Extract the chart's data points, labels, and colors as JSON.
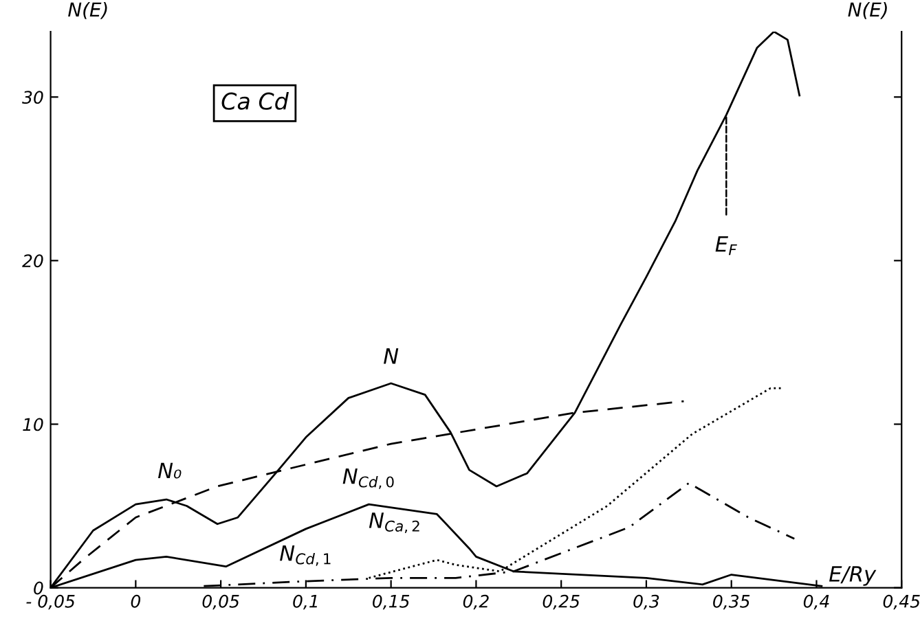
{
  "chart_data": {
    "type": "line",
    "xlabel": "E/Ry",
    "ylabel": "N(E)",
    "y2label": "N(E)",
    "xlim": [
      -0.05,
      0.45
    ],
    "ylim": [
      0,
      34
    ],
    "xticks": [
      {
        "value": -0.05,
        "label": "- 0,05"
      },
      0,
      {
        "value": 0.05,
        "label": "0,05"
      },
      {
        "value": 0.1,
        "label": "0,1"
      },
      {
        "value": 0.15,
        "label": "0,15"
      },
      {
        "value": 0.2,
        "label": "0,2"
      },
      {
        "value": 0.25,
        "label": "0,25"
      },
      {
        "value": 0.3,
        "label": "0,3"
      },
      {
        "value": 0.35,
        "label": "0,35"
      },
      {
        "value": 0.4,
        "label": "0,4"
      },
      {
        "value": 0.45,
        "label": "0,45"
      }
    ],
    "yticks": [
      0,
      10,
      20,
      30
    ],
    "grid": false,
    "marker": "none",
    "series": [
      {
        "color": "#000000",
        "line_style": "solid",
        "x": [
          -0.05,
          -0.025,
          0,
          0.018,
          0.03,
          0.048,
          0.06,
          0.083,
          0.1,
          0.125,
          0.15,
          0.17,
          0.185,
          0.196,
          0.212,
          0.23,
          0.258,
          0.285,
          0.3,
          0.317,
          0.33,
          0.347,
          0.365,
          0.375,
          0.383,
          0.39
        ],
        "values": [
          0,
          3.5,
          5.1,
          5.4,
          5.0,
          3.9,
          4.3,
          7.1,
          9.2,
          11.6,
          12.5,
          11.8,
          9.5,
          7.2,
          6.2,
          7.0,
          10.7,
          16.1,
          19.0,
          22.4,
          25.5,
          28.9,
          33.0,
          34.0,
          33.5,
          30.1
        ]
      },
      {
        "color": "#000000",
        "line_style": "dashed",
        "x": [
          -0.05,
          -0.03,
          0,
          0.048,
          0.083,
          0.15,
          0.258,
          0.322
        ],
        "values": [
          0,
          1.8,
          4.3,
          6.2,
          7.1,
          8.8,
          10.7,
          11.4
        ]
      },
      {
        "color": "#000000",
        "line_style": "solid",
        "x": [
          -0.05,
          0,
          0.018,
          0.053,
          0.1,
          0.137,
          0.177,
          0.196,
          0.2,
          0.222,
          0.3,
          0.333,
          0.35,
          0.403
        ],
        "values": [
          0,
          1.7,
          1.9,
          1.3,
          3.6,
          5.1,
          4.5,
          2.4,
          1.9,
          1.0,
          0.6,
          0.2,
          0.8,
          0.1
        ]
      },
      {
        "color": "#000000",
        "line_style": "dashdot",
        "x": [
          0.04,
          0.1,
          0.15,
          0.188,
          0.222,
          0.29,
          0.325,
          0.36,
          0.387
        ],
        "values": [
          0.1,
          0.4,
          0.6,
          0.6,
          1.0,
          3.7,
          6.4,
          4.3,
          3.0
        ]
      },
      {
        "color": "#000000",
        "line_style": "dotted",
        "x": [
          0.137,
          0.177,
          0.188,
          0.214,
          0.277,
          0.327,
          0.373,
          0.38
        ],
        "values": [
          0.6,
          1.7,
          1.4,
          1.0,
          5.0,
          9.4,
          12.2,
          12.2
        ]
      }
    ],
    "annotations": [
      "Ca Cd",
      {
        "text": "N",
        "x": 0.15,
        "y": 12.5
      },
      {
        "text": "N₀",
        "x": 0.048,
        "y": 6.2
      },
      {
        "text": "N$_{Cd,0}$",
        "x": 0.137,
        "y": 5.1
      },
      {
        "text": "N$_{Cd,1}$",
        "x": 0.1,
        "y": 0.4
      },
      {
        "text": "N$_{Ca,2}$",
        "x": 0.177,
        "y": 1.7
      },
      {
        "text": "E$_{F}$",
        "x": 0.347,
        "y": 28.9
      }
    ]
  }
}
